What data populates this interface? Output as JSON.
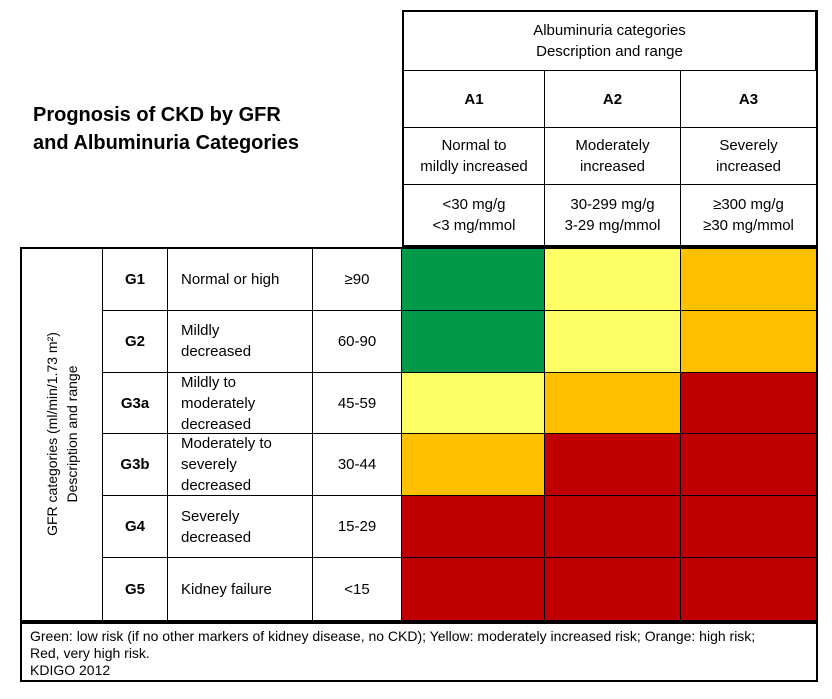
{
  "title": {
    "text": "Prognosis of CKD by GFR\nand Albuminuria Categories"
  },
  "albuminuria": {
    "header": "Albuminuria categories\nDescription and range",
    "columns": [
      {
        "code": "A1",
        "description": "Normal to\nmildly increased",
        "range": "<30 mg/g\n<3 mg/mmol"
      },
      {
        "code": "A2",
        "description": "Moderately\nincreased",
        "range": "30-299 mg/g\n3-29 mg/mmol"
      },
      {
        "code": "A3",
        "description": "Severely\nincreased",
        "range": "≥300 mg/g\n≥30 mg/mmol"
      }
    ]
  },
  "gfr_axis": {
    "label": "GFR categories (ml/min/1.73 m²)\nDescription and range"
  },
  "rows": [
    {
      "code": "G1",
      "description": "Normal or high",
      "range": "≥90",
      "cells": [
        "green",
        "yellow",
        "orange"
      ]
    },
    {
      "code": "G2",
      "description": "Mildly\ndecreased",
      "range": "60-90",
      "cells": [
        "green",
        "yellow",
        "orange"
      ]
    },
    {
      "code": "G3a",
      "description": "Mildly to\nmoderately\ndecreased",
      "range": "45-59",
      "cells": [
        "yellow",
        "orange",
        "red"
      ]
    },
    {
      "code": "G3b",
      "description": "Moderately to\nseverely\ndecreased",
      "range": "30-44",
      "cells": [
        "orange",
        "red",
        "red"
      ]
    },
    {
      "code": "G4",
      "description": "Severely\ndecreased",
      "range": "15-29",
      "cells": [
        "red",
        "red",
        "red"
      ]
    },
    {
      "code": "G5",
      "description": "Kidney failure",
      "range": "<15",
      "cells": [
        "red",
        "red",
        "red"
      ]
    }
  ],
  "colors": {
    "green": "#009A49",
    "yellow": "#FFFF66",
    "orange": "#FFC000",
    "red": "#C00000"
  },
  "footnote": {
    "text": "Green: low risk (if no other markers of kidney disease, no CKD); Yellow: moderately increased risk; Orange: high risk;\nRed, very high risk.\nKDIGO 2012"
  },
  "chart_data": {
    "type": "heatmap",
    "title": "Prognosis of CKD by GFR and Albuminuria Categories",
    "x_categories": [
      "A1",
      "A2",
      "A3"
    ],
    "x_axis_label": "Albuminuria categories — Description and range",
    "x_descriptions": [
      "Normal to mildly increased",
      "Moderately increased",
      "Severely increased"
    ],
    "x_ranges": [
      "<30 mg/g; <3 mg/mmol",
      "30-299 mg/g; 3-29 mg/mmol",
      "≥300 mg/g; ≥30 mg/mmol"
    ],
    "y_categories": [
      "G1",
      "G2",
      "G3a",
      "G3b",
      "G4",
      "G5"
    ],
    "y_axis_label": "GFR categories (ml/min/1.73 m²) — Description and range",
    "y_descriptions": [
      "Normal or high",
      "Mildly decreased",
      "Mildly to moderately decreased",
      "Moderately to severely decreased",
      "Severely decreased",
      "Kidney failure"
    ],
    "y_ranges": [
      "≥90",
      "60-90",
      "45-59",
      "30-44",
      "15-29",
      "<15"
    ],
    "values": [
      [
        "low risk",
        "moderately increased risk",
        "high risk"
      ],
      [
        "low risk",
        "moderately increased risk",
        "high risk"
      ],
      [
        "moderately increased risk",
        "high risk",
        "very high risk"
      ],
      [
        "high risk",
        "very high risk",
        "very high risk"
      ],
      [
        "very high risk",
        "very high risk",
        "very high risk"
      ],
      [
        "very high risk",
        "very high risk",
        "very high risk"
      ]
    ],
    "color_key": {
      "green": "low risk (if no other markers of kidney disease, no CKD)",
      "yellow": "moderately increased risk",
      "orange": "high risk",
      "red": "very high risk"
    },
    "source": "KDIGO 2012"
  }
}
